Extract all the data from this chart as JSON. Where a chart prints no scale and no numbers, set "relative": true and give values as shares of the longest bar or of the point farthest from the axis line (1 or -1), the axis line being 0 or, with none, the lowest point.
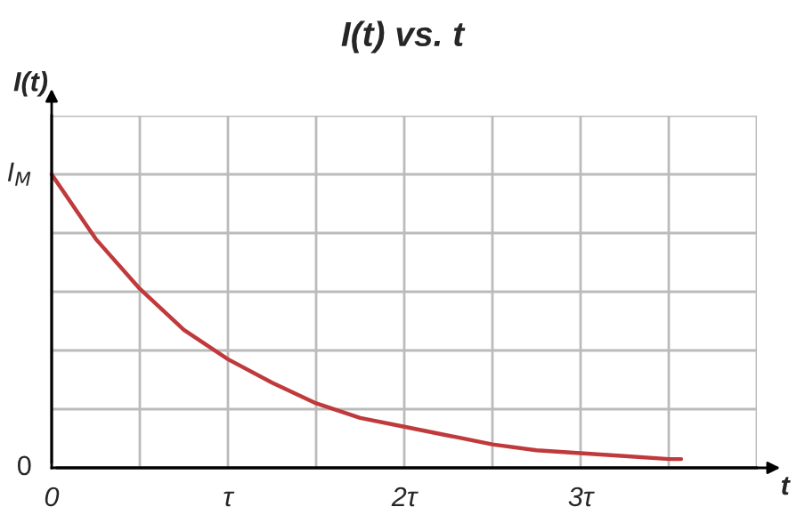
{
  "chart_data": {
    "type": "line",
    "title": "I(t) vs. t",
    "xlabel": "t",
    "ylabel": "I(t)",
    "x": [
      0,
      0.25,
      0.5,
      0.75,
      1,
      1.25,
      1.5,
      1.75,
      2,
      2.25,
      2.5,
      2.75,
      3,
      3.25,
      3.5,
      3.57
    ],
    "series": [
      {
        "color": "#c0393b",
        "values": [
          1,
          0.78,
          0.61,
          0.47,
          0.37,
          0.29,
          0.22,
          0.17,
          0.14,
          0.11,
          0.08,
          0.06,
          0.05,
          0.04,
          0.03,
          0.03
        ]
      }
    ],
    "relative": true,
    "annotations": [
      "0",
      {
        "text": "I$_{M}$",
        "x": 0,
        "y": 1
      }
    ],
    "xlim": [
      0,
      4
    ],
    "xticks": [
      0,
      {
        "value": 0.5,
        "label": null
      },
      {
        "value": 1,
        "label": "τ"
      },
      {
        "value": 1.5,
        "label": null
      },
      {
        "value": 2,
        "label": "2τ"
      },
      {
        "value": 2.5,
        "label": null
      },
      {
        "value": 3,
        "label": "3τ"
      },
      {
        "value": 3.5,
        "label": null
      },
      {
        "value": 4,
        "label": null
      }
    ],
    "grid": true,
    "marker": "none",
    "line_style": "solid",
    "legend": false
  }
}
